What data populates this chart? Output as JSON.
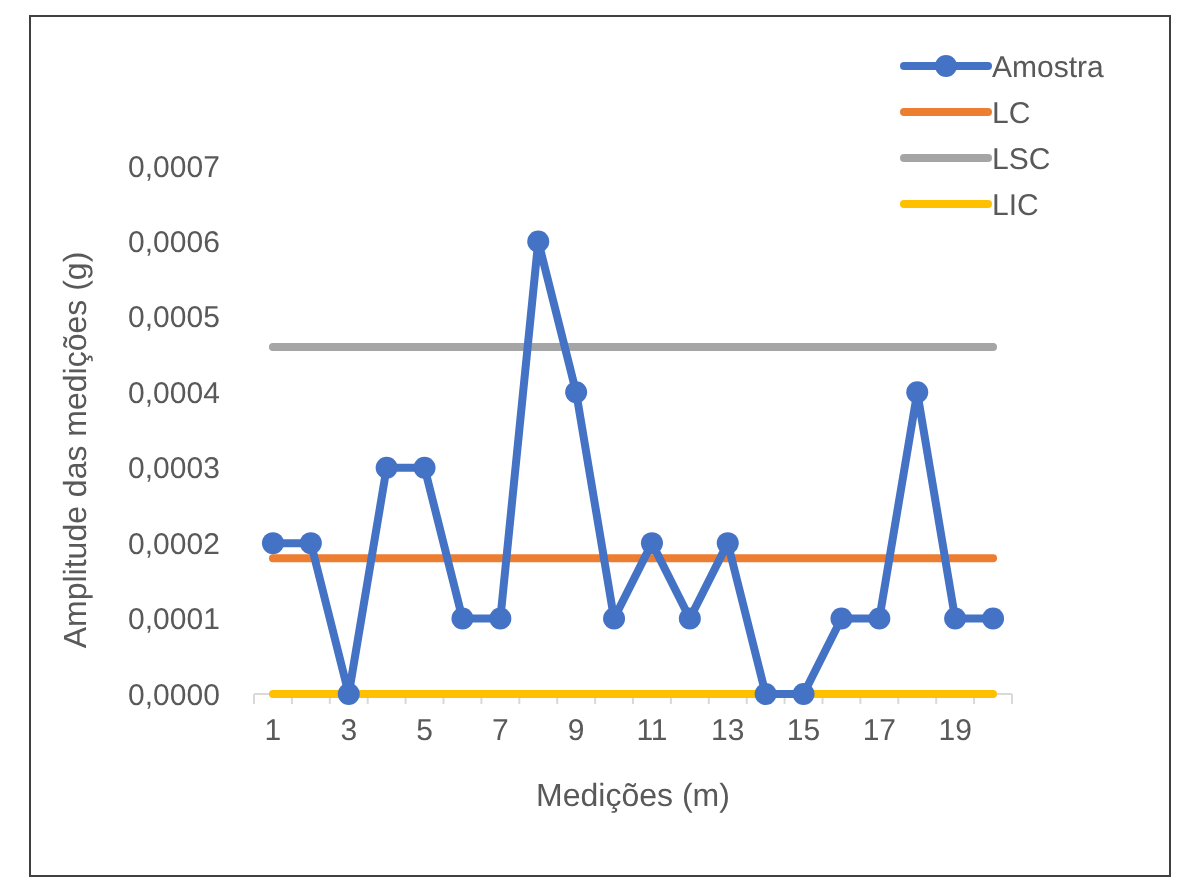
{
  "chart_data": {
    "type": "line",
    "xlabel": "Medições (m)",
    "ylabel": "Amplitude das medições (g)",
    "x": [
      1,
      2,
      3,
      4,
      5,
      6,
      7,
      8,
      9,
      10,
      11,
      12,
      13,
      14,
      15,
      16,
      17,
      18,
      19,
      20
    ],
    "xlim": [
      0.5,
      20.5
    ],
    "xticks": [
      1,
      3,
      5,
      7,
      9,
      11,
      13,
      15,
      17,
      19
    ],
    "ylim": [
      0,
      0.0007
    ],
    "yticks": [
      {
        "value": 0,
        "label": "0,0000"
      },
      {
        "value": 0.0001,
        "label": "0,0001"
      },
      {
        "value": 0.0002,
        "label": "0,0002"
      },
      {
        "value": 0.0003,
        "label": "0,0003"
      },
      {
        "value": 0.0004,
        "label": "0,0004"
      },
      {
        "value": 0.0005,
        "label": "0,0005"
      },
      {
        "value": 0.0006,
        "label": "0,0006"
      },
      {
        "value": 0.0007,
        "label": "0,0007"
      }
    ],
    "grid": false,
    "legend": "top right",
    "series": [
      {
        "name": "Amostra",
        "color": "#4472c4",
        "marker": "circle",
        "values": [
          0.0002,
          0.0002,
          0,
          0.0003,
          0.0003,
          0.0001,
          0.0001,
          0.0006,
          0.0004,
          0.0001,
          0.0002,
          0.0001,
          0.0002,
          0,
          0,
          0.0001,
          0.0001,
          0.0004,
          0.0001,
          0.0001
        ]
      },
      {
        "name": "LC",
        "color": "#ed7d31",
        "marker": "none",
        "values": [
          0.00018,
          0.00018,
          0.00018,
          0.00018,
          0.00018,
          0.00018,
          0.00018,
          0.00018,
          0.00018,
          0.00018,
          0.00018,
          0.00018,
          0.00018,
          0.00018,
          0.00018,
          0.00018,
          0.00018,
          0.00018,
          0.00018,
          0.00018
        ]
      },
      {
        "name": "LSC",
        "color": "#a5a5a5",
        "marker": "none",
        "values": [
          0.00046,
          0.00046,
          0.00046,
          0.00046,
          0.00046,
          0.00046,
          0.00046,
          0.00046,
          0.00046,
          0.00046,
          0.00046,
          0.00046,
          0.00046,
          0.00046,
          0.00046,
          0.00046,
          0.00046,
          0.00046,
          0.00046,
          0.00046
        ]
      },
      {
        "name": "LIC",
        "color": "#ffc000",
        "marker": "none",
        "values": [
          0,
          0,
          0,
          0,
          0,
          0,
          0,
          0,
          0,
          0,
          0,
          0,
          0,
          0,
          0,
          0,
          0,
          0,
          0,
          0
        ]
      }
    ]
  }
}
